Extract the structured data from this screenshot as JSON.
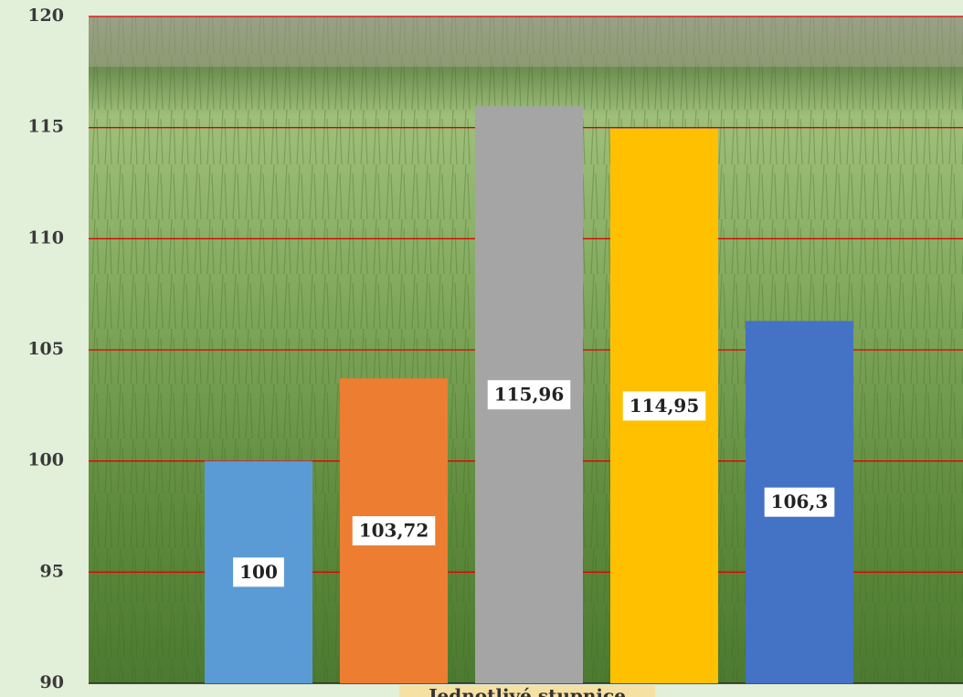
{
  "chart_data": {
    "type": "bar",
    "x_label": "Jednotlivé stupnice",
    "categories": [
      null,
      null,
      null,
      null,
      null
    ],
    "values": [
      100,
      103.72,
      115.96,
      114.95,
      106.3
    ],
    "value_labels": [
      "100",
      "103,72",
      "115,96",
      "114,95",
      "106,3"
    ],
    "colors": [
      "#5b9bd5",
      "#ed7d31",
      "#a5a5a5",
      "#ffc000",
      "#4472c4"
    ],
    "ylim": [
      90,
      120
    ],
    "yticks": [
      90,
      95,
      100,
      105,
      110,
      115,
      120
    ],
    "grid": true,
    "grid_color": "#e00000"
  }
}
